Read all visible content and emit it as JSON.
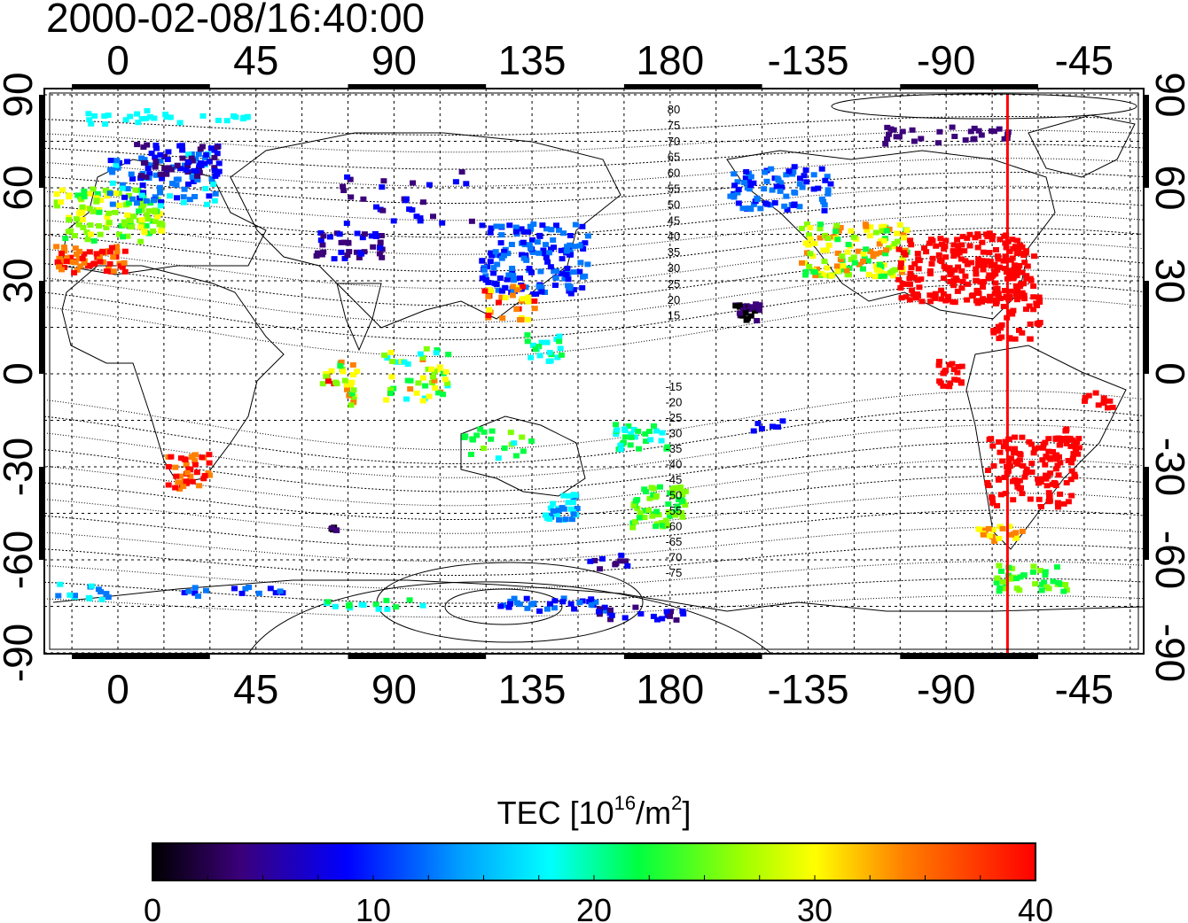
{
  "timestamp": "2000-02-08/16:40:00",
  "axes": {
    "lon_labels_top": [
      "0",
      "45",
      "90",
      "135",
      "180",
      "-135",
      "-90",
      "-45"
    ],
    "lon_labels_bottom": [
      "0",
      "45",
      "90",
      "135",
      "180",
      "-135",
      "-90",
      "-45"
    ],
    "lat_labels_left": [
      "90",
      "60",
      "30",
      "0",
      "-30",
      "-60",
      "-90"
    ],
    "lat_labels_right": [
      "90",
      "60",
      "30",
      "0",
      "-30",
      "-60",
      "-90"
    ]
  },
  "contour_labels": {
    "north": [
      "80",
      "75",
      "70",
      "65",
      "60",
      "55",
      "50",
      "45",
      "40",
      "35",
      "30",
      "25",
      "20",
      "15"
    ],
    "south": [
      "-15",
      "-20",
      "-25",
      "-30",
      "-35",
      "-40",
      "-45",
      "-50",
      "-55",
      "-60",
      "-65",
      "-70",
      "-75"
    ]
  },
  "marker": {
    "label": "",
    "longitude": -70,
    "color": "#ff0000"
  },
  "colorbar": {
    "title_prefix": "TEC  [10",
    "title_sup1": "16",
    "title_mid": "/m",
    "title_sup2": "2",
    "title_suffix": "]",
    "ticks": [
      "0",
      "10",
      "20",
      "30",
      "40"
    ],
    "min": 0,
    "max": 40
  },
  "colors": {
    "tec_scale": [
      "#000000",
      "#3b007a",
      "#0000ff",
      "#0077ff",
      "#00ffff",
      "#00ff40",
      "#80ff00",
      "#ffff00",
      "#ff8000",
      "#ff0000"
    ]
  }
}
